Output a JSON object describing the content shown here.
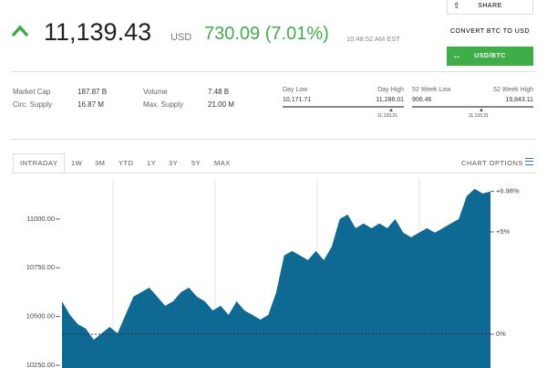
{
  "header": {
    "price": "11,139.43",
    "currency": "USD",
    "change": "730.09 (7.01%)",
    "time": "10:48:52 AM EST"
  },
  "buttons": {
    "share": "SHARE",
    "convert": "CONVERT BTC TO USD",
    "toggle": "USD/BTC"
  },
  "stats": [
    {
      "label": "Market Cap",
      "value": "187.87 B"
    },
    {
      "label": "Circ. Supply",
      "value": "16.87 M"
    },
    {
      "label": "Volume",
      "value": "7.48 B"
    },
    {
      "label": "Max. Supply",
      "value": "21.00 M"
    }
  ],
  "ranges": [
    {
      "low_label": "Day Low",
      "high_label": "Day High",
      "low": "10,171.71",
      "high": "11,288.01",
      "current": "11,133.31"
    },
    {
      "low_label": "52 Week Low",
      "high_label": "52 Week High",
      "low": "906.46",
      "high": "19,843.11",
      "current": "11,133.31"
    }
  ],
  "tabs": [
    "INTRADAY",
    "1W",
    "3M",
    "YTD",
    "1Y",
    "3Y",
    "5Y",
    "MAX"
  ],
  "chart_options": "CHART OPTIONS",
  "chart": {
    "type": "area",
    "color": "#0e6a93",
    "values": [
      10578,
      10508,
      10461,
      10438,
      10381,
      10414,
      10447,
      10414,
      10508,
      10602,
      10625,
      10648,
      10602,
      10555,
      10578,
      10625,
      10648,
      10602,
      10578,
      10531,
      10555,
      10508,
      10578,
      10531,
      10508,
      10484,
      10508,
      10625,
      10813,
      10836,
      10813,
      10789,
      10836,
      10789,
      10859,
      11000,
      11023,
      10953,
      10977,
      10953,
      10977,
      10953,
      11000,
      10930,
      10906,
      10930,
      10953,
      10930,
      10953,
      10977,
      11000,
      11117,
      11155,
      11131,
      11141
    ],
    "ylim": [
      10236,
      11210
    ],
    "yticks": [
      {
        "value": 11000,
        "label": "11000.00"
      },
      {
        "value": 10750,
        "label": "10750.00"
      },
      {
        "value": 10500,
        "label": "10500.00"
      },
      {
        "value": 10250,
        "label": "10250.00"
      }
    ],
    "y2lim": [
      -1.65,
      7.63
    ],
    "y2ticks": [
      {
        "value": 6.98,
        "label": "+6.98%"
      },
      {
        "value": 5,
        "label": "+5%"
      },
      {
        "value": 0,
        "label": "0%"
      }
    ]
  }
}
